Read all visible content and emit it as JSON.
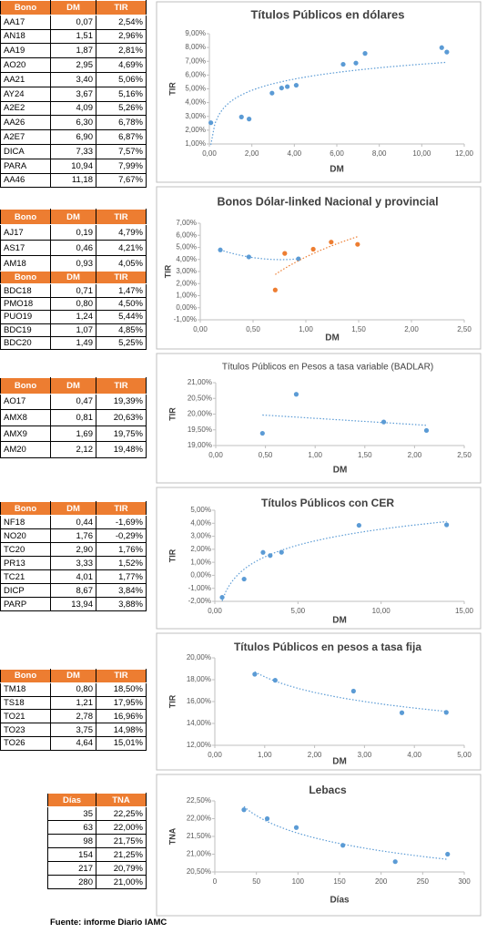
{
  "tables": [
    {
      "header": [
        "Bono",
        "DM",
        "TIR"
      ],
      "rows": [
        [
          "AA17",
          "0,07",
          "2,54%"
        ],
        [
          "AN18",
          "1,51",
          "2,96%"
        ],
        [
          "AA19",
          "1,87",
          "2,81%"
        ],
        [
          "AO20",
          "2,95",
          "4,69%"
        ],
        [
          "AA21",
          "3,40",
          "5,06%"
        ],
        [
          "AY24",
          "3,67",
          "5,16%"
        ],
        [
          "A2E2",
          "4,09",
          "5,26%"
        ],
        [
          "AA26",
          "6,30",
          "6,78%"
        ],
        [
          "A2E7",
          "6,90",
          "6,87%"
        ],
        [
          "DICA",
          "7,33",
          "7,57%"
        ],
        [
          "PARA",
          "10,94",
          "7,99%"
        ],
        [
          "AA46",
          "11,18",
          "7,67%"
        ]
      ]
    },
    {
      "header": [
        "Bono",
        "DM",
        "TIR"
      ],
      "rows": [
        [
          "AJ17",
          "0,19",
          "4,79%"
        ],
        [
          "AS17",
          "0,46",
          "4,21%"
        ],
        [
          "AM18",
          "0,93",
          "4,05%"
        ]
      ]
    },
    {
      "header": [
        "Bono",
        "DM",
        "TIR"
      ],
      "rows": [
        [
          "BDC18",
          "0,71",
          "1,47%"
        ],
        [
          "PMO18",
          "0,80",
          "4,50%"
        ],
        [
          "PUO19",
          "1,24",
          "5,44%"
        ],
        [
          "BDC19",
          "1,07",
          "4,85%"
        ],
        [
          "BDC20",
          "1,49",
          "5,25%"
        ]
      ]
    },
    {
      "header": [
        "Bono",
        "DM",
        "TIR"
      ],
      "rows": [
        [
          "AO17",
          "0,47",
          "19,39%"
        ],
        [
          "AMX8",
          "0,81",
          "20,63%"
        ],
        [
          "AMX9",
          "1,69",
          "19,75%"
        ],
        [
          "AM20",
          "2,12",
          "19,48%"
        ]
      ]
    },
    {
      "header": [
        "Bono",
        "DM",
        "TIR"
      ],
      "rows": [
        [
          "NF18",
          "0,44",
          "-1,69%"
        ],
        [
          "NO20",
          "1,76",
          "-0,29%"
        ],
        [
          "TC20",
          "2,90",
          "1,76%"
        ],
        [
          "PR13",
          "3,33",
          "1,52%"
        ],
        [
          "TC21",
          "4,01",
          "1,77%"
        ],
        [
          "DICP",
          "8,67",
          "3,84%"
        ],
        [
          "PARP",
          "13,94",
          "3,88%"
        ]
      ]
    },
    {
      "header": [
        "Bono",
        "DM",
        "TIR"
      ],
      "rows": [
        [
          "TM18",
          "0,80",
          "18,50%"
        ],
        [
          "TS18",
          "1,21",
          "17,95%"
        ],
        [
          "TO21",
          "2,78",
          "16,96%"
        ],
        [
          "TO23",
          "3,75",
          "14,98%"
        ],
        [
          "TO26",
          "4,64",
          "15,01%"
        ]
      ]
    },
    {
      "header": [
        "Días",
        "TNA"
      ],
      "rows": [
        [
          "35",
          "22,25%"
        ],
        [
          "63",
          "22,00%"
        ],
        [
          "98",
          "21,75%"
        ],
        [
          "154",
          "21,25%"
        ],
        [
          "217",
          "20,79%"
        ],
        [
          "280",
          "21,00%"
        ]
      ]
    }
  ],
  "chart_data": [
    {
      "type": "scatter",
      "title": "Títulos Públicos en dólares",
      "x_label": "DM",
      "y_label": "TIR",
      "xlim": [
        0,
        12
      ],
      "ylim": [
        1,
        9
      ],
      "xticks": [
        {
          "value": 0,
          "label": "0,00"
        },
        {
          "value": 2,
          "label": "2,00"
        },
        {
          "value": 4,
          "label": "4,00"
        },
        {
          "value": 6,
          "label": "6,00"
        },
        {
          "value": 8,
          "label": "8,00"
        },
        {
          "value": 10,
          "label": "10,00"
        },
        {
          "value": 12,
          "label": "12,00"
        }
      ],
      "yticks": [
        {
          "value": 1,
          "label": "1,00%"
        },
        {
          "value": 2,
          "label": "2,00%"
        },
        {
          "value": 3,
          "label": "3,00%"
        },
        {
          "value": 4,
          "label": "4,00%"
        },
        {
          "value": 5,
          "label": "5,00%"
        },
        {
          "value": 6,
          "label": "6,00%"
        },
        {
          "value": 7,
          "label": "7,00%"
        },
        {
          "value": 8,
          "label": "8,00%"
        },
        {
          "value": 9,
          "label": "9,00%"
        }
      ],
      "series": [
        {
          "color": "#5B9BD5",
          "trendline": "log",
          "x": [
            0.07,
            1.51,
            1.87,
            2.95,
            3.4,
            3.67,
            4.09,
            6.3,
            6.9,
            7.33,
            10.94,
            11.18
          ],
          "values": [
            2.54,
            2.96,
            2.81,
            4.69,
            5.06,
            5.16,
            5.26,
            6.78,
            6.87,
            7.57,
            7.99,
            7.67
          ]
        }
      ]
    },
    {
      "type": "scatter",
      "title": "Bonos Dólar-linked  Nacional y provincial",
      "x_label": "DM",
      "y_label": "TIR",
      "xlim": [
        0,
        2.5
      ],
      "ylim": [
        -1,
        7
      ],
      "xticks": [
        {
          "value": 0,
          "label": "0,00"
        },
        {
          "value": 0.5,
          "label": "0,50"
        },
        {
          "value": 1,
          "label": "1,00"
        },
        {
          "value": 1.5,
          "label": "1,50"
        },
        {
          "value": 2,
          "label": "2,00"
        },
        {
          "value": 2.5,
          "label": "2,50"
        }
      ],
      "yticks": [
        {
          "value": -1,
          "label": "-1,00%"
        },
        {
          "value": 0,
          "label": "0,00%"
        },
        {
          "value": 1,
          "label": "1,00%"
        },
        {
          "value": 2,
          "label": "2,00%"
        },
        {
          "value": 3,
          "label": "3,00%"
        },
        {
          "value": 4,
          "label": "4,00%"
        },
        {
          "value": 5,
          "label": "5,00%"
        },
        {
          "value": 6,
          "label": "6,00%"
        },
        {
          "value": 7,
          "label": "7,00%"
        }
      ],
      "series": [
        {
          "color": "#5B9BD5",
          "trendline": "poly2",
          "x": [
            0.19,
            0.46,
            0.93
          ],
          "values": [
            4.79,
            4.21,
            4.05
          ]
        },
        {
          "color": "#ED7D31",
          "trendline": "log",
          "x": [
            0.71,
            0.8,
            1.24,
            1.07,
            1.49
          ],
          "values": [
            1.47,
            4.5,
            5.44,
            4.85,
            5.25
          ]
        }
      ]
    },
    {
      "type": "scatter",
      "title": "Títulos Públicos en Pesos a tasa variable (BADLAR)",
      "x_label": "DM",
      "y_label": "TIR",
      "xlim": [
        0,
        2.5
      ],
      "ylim": [
        19,
        21
      ],
      "xticks": [
        {
          "value": 0,
          "label": "0,00"
        },
        {
          "value": 0.5,
          "label": "0,50"
        },
        {
          "value": 1,
          "label": "1,00"
        },
        {
          "value": 1.5,
          "label": "1,50"
        },
        {
          "value": 2,
          "label": "2,00"
        },
        {
          "value": 2.5,
          "label": "2,50"
        }
      ],
      "yticks": [
        {
          "value": 19,
          "label": "19,00%"
        },
        {
          "value": 19.5,
          "label": "19,50%"
        },
        {
          "value": 20,
          "label": "20,00%"
        },
        {
          "value": 20.5,
          "label": "20,50%"
        },
        {
          "value": 21,
          "label": "21,00%"
        }
      ],
      "series": [
        {
          "color": "#5B9BD5",
          "trendline": "linear",
          "x": [
            0.47,
            0.81,
            1.69,
            2.12
          ],
          "values": [
            19.39,
            20.63,
            19.75,
            19.48
          ]
        }
      ]
    },
    {
      "type": "scatter",
      "title": "Títulos Públicos con CER",
      "x_label": "DM",
      "y_label": "TIR",
      "xlim": [
        0,
        15
      ],
      "ylim": [
        -2,
        5
      ],
      "xticks": [
        {
          "value": 0,
          "label": "0,00"
        },
        {
          "value": 5,
          "label": "5,00"
        },
        {
          "value": 10,
          "label": "10,00"
        },
        {
          "value": 15,
          "label": "15,00"
        }
      ],
      "yticks": [
        {
          "value": -2,
          "label": "-2,00%"
        },
        {
          "value": -1,
          "label": "-1,00%"
        },
        {
          "value": 0,
          "label": "0,00%"
        },
        {
          "value": 1,
          "label": "1,00%"
        },
        {
          "value": 2,
          "label": "2,00%"
        },
        {
          "value": 3,
          "label": "3,00%"
        },
        {
          "value": 4,
          "label": "4,00%"
        },
        {
          "value": 5,
          "label": "5,00%"
        }
      ],
      "series": [
        {
          "color": "#5B9BD5",
          "trendline": "log",
          "x": [
            0.44,
            1.76,
            2.9,
            3.33,
            4.01,
            8.67,
            13.94
          ],
          "values": [
            -1.69,
            -0.29,
            1.76,
            1.52,
            1.77,
            3.84,
            3.88
          ]
        }
      ]
    },
    {
      "type": "scatter",
      "title": "Títulos Públicos en pesos a tasa fija",
      "x_label": "DM",
      "y_label": "TIR",
      "xlim": [
        0,
        5
      ],
      "ylim": [
        12,
        20
      ],
      "xticks": [
        {
          "value": 0,
          "label": "0,00"
        },
        {
          "value": 1,
          "label": "1,00"
        },
        {
          "value": 2,
          "label": "2,00"
        },
        {
          "value": 3,
          "label": "3,00"
        },
        {
          "value": 4,
          "label": "4,00"
        },
        {
          "value": 5,
          "label": "5,00"
        }
      ],
      "yticks": [
        {
          "value": 12,
          "label": "12,00%"
        },
        {
          "value": 14,
          "label": "14,00%"
        },
        {
          "value": 16,
          "label": "16,00%"
        },
        {
          "value": 18,
          "label": "18,00%"
        },
        {
          "value": 20,
          "label": "20,00%"
        }
      ],
      "series": [
        {
          "color": "#5B9BD5",
          "trendline": "log",
          "x": [
            0.8,
            1.21,
            2.78,
            3.75,
            4.64
          ],
          "values": [
            18.5,
            17.95,
            16.96,
            14.98,
            15.01
          ]
        }
      ]
    },
    {
      "type": "scatter",
      "title": "Lebacs",
      "x_label": "Días",
      "y_label": "TNA",
      "xlim": [
        0,
        300
      ],
      "ylim": [
        20.5,
        22.5
      ],
      "xticks": [
        0,
        50,
        100,
        150,
        200,
        250,
        300
      ],
      "yticks": [
        {
          "value": 20.5,
          "label": "20,50%"
        },
        {
          "value": 21,
          "label": "21,00%"
        },
        {
          "value": 21.5,
          "label": "21,50%"
        },
        {
          "value": 22,
          "label": "22,00%"
        },
        {
          "value": 22.5,
          "label": "22,50%"
        }
      ],
      "series": [
        {
          "color": "#5B9BD5",
          "trendline": "log",
          "x": [
            35,
            63,
            98,
            154,
            217,
            280
          ],
          "values": [
            22.25,
            22.0,
            21.75,
            21.25,
            20.79,
            21.0
          ]
        }
      ]
    }
  ],
  "footer": "Fuente: informe Diario IAMC"
}
